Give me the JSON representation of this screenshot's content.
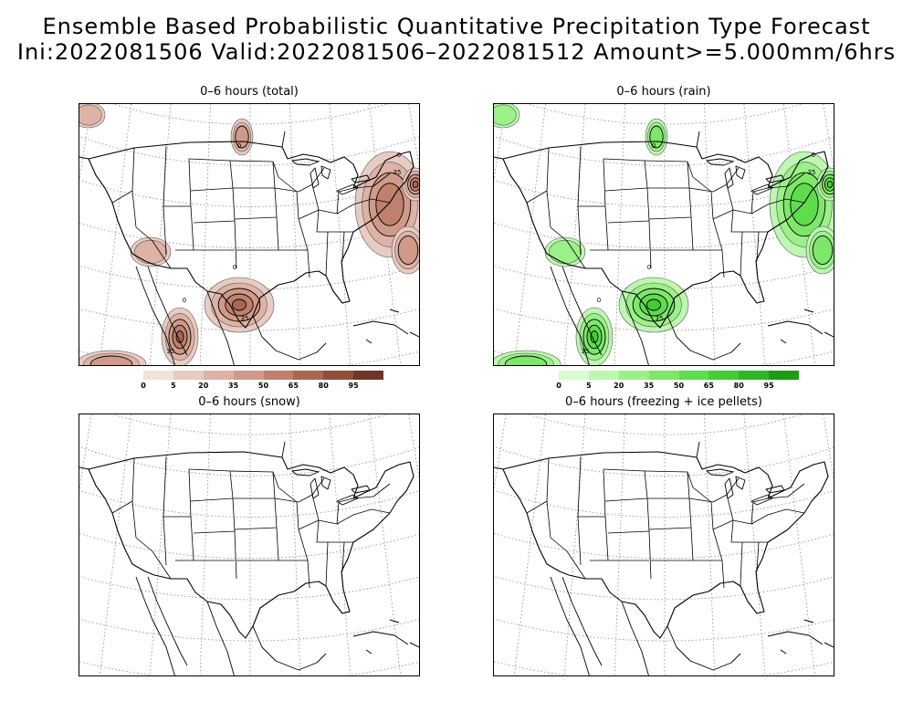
{
  "title": {
    "line1": "Ensemble Based Probabilistic Quantitative Precipitation Type Forecast",
    "line2": "Ini:2022081506 Valid:2022081506–2022081512 Amount>=5.000mm/6hrs"
  },
  "panels": [
    {
      "id": "total",
      "title": "0–6 hours (total)",
      "palette": "brown",
      "contour_label": "35",
      "zero_label": "0",
      "colorbar": {
        "labels": [
          "0",
          "5",
          "20",
          "35",
          "50",
          "65",
          "80",
          "95"
        ],
        "colors": [
          "#f2e1db",
          "#e8cbc1",
          "#ddb3a6",
          "#cf9a89",
          "#bf806d",
          "#a96753",
          "#8f4f3c",
          "#6e3626"
        ]
      }
    },
    {
      "id": "rain",
      "title": "0–6 hours (rain)",
      "palette": "green",
      "contour_label": "35",
      "zero_label": "0",
      "colorbar": {
        "labels": [
          "0",
          "5",
          "20",
          "35",
          "50",
          "65",
          "80",
          "95"
        ],
        "colors": [
          "#d9fcd2",
          "#bdf7b0",
          "#9cf08a",
          "#7de76a",
          "#5edc4d",
          "#44cc37",
          "#2fb726",
          "#1e9c18"
        ]
      }
    },
    {
      "id": "snow",
      "title": "0–6 hours (snow)",
      "palette": "none"
    },
    {
      "id": "freezing",
      "title": "0–6 hours (freezing + ice pellets)",
      "palette": "none"
    }
  ]
}
